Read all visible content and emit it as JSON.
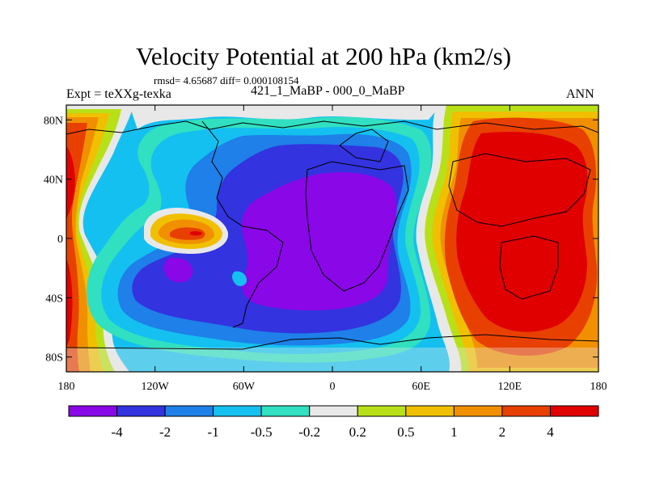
{
  "chart_data": {
    "type": "heatmap",
    "title": "Velocity Potential at 200 hPa (km2/s)",
    "subtitle": "rmsd= 4.65687 diff= 0.000108154",
    "left_label": "Expt = teXXg-texka",
    "center_label": "421_1_MaBP - 000_0_MaBP",
    "right_label": "ANN",
    "x_ticks": [
      "180",
      "120W",
      "60W",
      "0",
      "60E",
      "120E",
      "180"
    ],
    "x_tick_values": [
      -180,
      -120,
      -60,
      0,
      60,
      120,
      180
    ],
    "y_ticks": [
      "80N",
      "40N",
      "0",
      "40S",
      "80S"
    ],
    "y_tick_values": [
      80,
      40,
      0,
      -40,
      -80
    ],
    "xlim": [
      -180,
      180
    ],
    "ylim": [
      -90,
      90
    ],
    "colorbar_levels": [
      "-4",
      "-2",
      "-1",
      "-0.5",
      "-0.2",
      "0.2",
      "0.5",
      "1",
      "2",
      "4"
    ],
    "colorbar_colors": [
      "#8a07e8",
      "#3333e0",
      "#1e80e8",
      "#14c0f0",
      "#30e0c0",
      "#e8e8e8",
      "#b8e018",
      "#f0c000",
      "#f09000",
      "#e84000",
      "#e00000"
    ],
    "regions": [
      {
        "name": "neg-minimum-centre",
        "level": "< -4",
        "center": [
          10,
          5
        ]
      },
      {
        "name": "neg-minimum-east-pacific",
        "level": "< -4",
        "center": [
          -100,
          -20
        ]
      },
      {
        "name": "pos-maximum-west-pacific",
        "level": "> 4",
        "center": [
          130,
          10
        ]
      },
      {
        "name": "pos-maximum-dateline-west",
        "level": "> 4",
        "center": [
          -175,
          30
        ]
      },
      {
        "name": "pos-island-east-pacific",
        "level": "2 to 4",
        "center": [
          -95,
          5
        ]
      }
    ]
  }
}
